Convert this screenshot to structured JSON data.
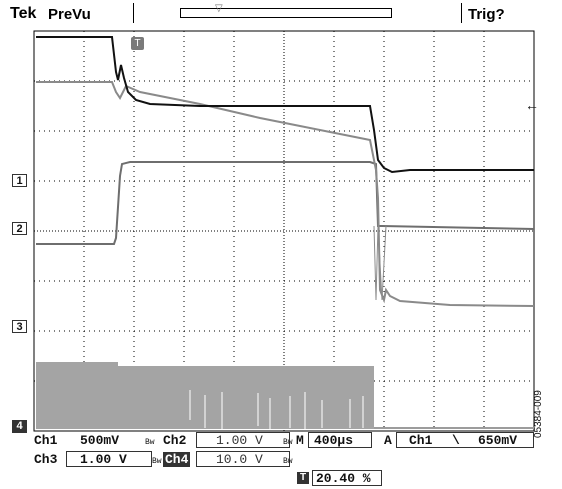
{
  "header": {
    "brand": "Tek",
    "acquisition_mode": "PreVu",
    "trigger_status": "Trig?"
  },
  "markers": {
    "ch1": "1",
    "ch2": "2",
    "ch3": "3",
    "ch4": "4",
    "trigger_position": "T"
  },
  "readouts": {
    "ch1_label": "Ch1",
    "ch1_scale": "500mV",
    "ch2_label": "Ch2",
    "ch2_scale": "1.00 V",
    "ch3_label": "Ch3",
    "ch3_scale": "1.00 V",
    "ch4_label": "Ch4",
    "ch4_scale": "10.0 V",
    "bw_limit": "Bw",
    "timebase_label": "M",
    "timebase": "400µs",
    "trigger_label": "A",
    "trigger_source": "Ch1",
    "trigger_slope": "\\",
    "trigger_level": "650mV",
    "trigger_position_label": "T",
    "trigger_position": "20.40 %"
  },
  "figure_id": "05384-009",
  "colors": {
    "grid": "#000000",
    "ch1": "#111111",
    "ch2": "#8a8a8a",
    "ch3": "#6e6e6e",
    "ch4": "#9c9c9c"
  }
}
